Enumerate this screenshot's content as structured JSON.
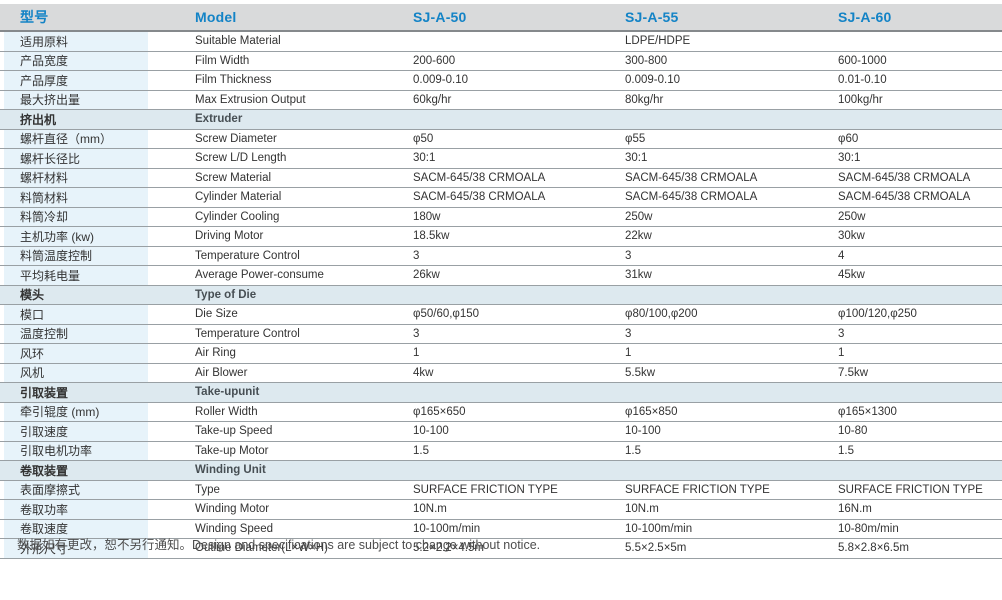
{
  "colors": {
    "header_bg": "#d9dadb",
    "header_text": "#1383c6",
    "first_col_bg": "#e7f3fa",
    "section_row_bg": "#dde9ef",
    "grid_line": "#99a0a4"
  },
  "table": {
    "headers": {
      "cn": "型号",
      "model": "Model",
      "col1": "SJ-A-50",
      "col2": "SJ-A-55",
      "col3": "SJ-A-60"
    },
    "rows": [
      {
        "type": "data",
        "cn": "适用原料",
        "en": "Suitable Material",
        "v1": "",
        "v2": "LDPE/HDPE",
        "v3": ""
      },
      {
        "type": "data",
        "cn": "产品宽度",
        "en": "Film Width",
        "v1": "200-600",
        "v2": "300-800",
        "v3": "600-1000"
      },
      {
        "type": "data",
        "cn": "产品厚度",
        "en": "Film Thickness",
        "v1": "0.009-0.10",
        "v2": "0.009-0.10",
        "v3": "0.01-0.10"
      },
      {
        "type": "data",
        "cn": "最大挤出量",
        "en": "Max Extrusion Output",
        "v1": "60kg/hr",
        "v2": "80kg/hr",
        "v3": "100kg/hr"
      },
      {
        "type": "section",
        "cn": "挤出机",
        "en": "Extruder"
      },
      {
        "type": "data",
        "cn": "螺杆直径（mm）",
        "en": "Screw Diameter",
        "v1": "φ50",
        "v2": "φ55",
        "v3": "φ60"
      },
      {
        "type": "data",
        "cn": "螺杆长径比",
        "en": "Screw L/D Length",
        "v1": "30:1",
        "v2": "30:1",
        "v3": "30:1"
      },
      {
        "type": "data",
        "cn": "螺杆材料",
        "en": "Screw Material",
        "v1": "SACM-645/38 CRMOALA",
        "v2": "SACM-645/38 CRMOALA",
        "v3": "SACM-645/38 CRMOALA"
      },
      {
        "type": "data",
        "cn": "料筒材料",
        "en": "Cylinder Material",
        "v1": "SACM-645/38 CRMOALA",
        "v2": "SACM-645/38 CRMOALA",
        "v3": "SACM-645/38 CRMOALA"
      },
      {
        "type": "data",
        "cn": "料筒冷却",
        "en": "Cylinder Cooling",
        "v1": "180w",
        "v2": "250w",
        "v3": "250w"
      },
      {
        "type": "data",
        "cn": "主机功率 (kw)",
        "en": "Driving Motor",
        "v1": "18.5kw",
        "v2": "22kw",
        "v3": "30kw"
      },
      {
        "type": "data",
        "cn": "料筒温度控制",
        "en": "Temperature Control",
        "v1": "3",
        "v2": "3",
        "v3": "4"
      },
      {
        "type": "data",
        "cn": "平均耗电量",
        "en": "Average Power-consume",
        "v1": "26kw",
        "v2": "31kw",
        "v3": "45kw"
      },
      {
        "type": "section",
        "cn": "模头",
        "en": "Type of Die"
      },
      {
        "type": "data",
        "cn": "模口",
        "en": "Die Size",
        "v1": "φ50/60,φ150",
        "v2": "φ80/100,φ200",
        "v3": "φ100/120,φ250"
      },
      {
        "type": "data",
        "cn": "温度控制",
        "en": "Temperature Control",
        "v1": "3",
        "v2": "3",
        "v3": "3"
      },
      {
        "type": "data",
        "cn": "风环",
        "en": "Air Ring",
        "v1": "1",
        "v2": "1",
        "v3": "1"
      },
      {
        "type": "data",
        "cn": "风机",
        "en": "Air Blower",
        "v1": "4kw",
        "v2": "5.5kw",
        "v3": "7.5kw"
      },
      {
        "type": "section",
        "cn": "引取装置",
        "en": "Take-upunit"
      },
      {
        "type": "data",
        "cn": "牵引辊度 (mm)",
        "en": "Roller Width",
        "v1": "φ165×650",
        "v2": "φ165×850",
        "v3": "φ165×1300"
      },
      {
        "type": "data",
        "cn": "引取速度",
        "en": "Take-up Speed",
        "v1": "10-100",
        "v2": "10-100",
        "v3": "10-80"
      },
      {
        "type": "data",
        "cn": "引取电机功率",
        "en": "Take-up Motor",
        "v1": "1.5",
        "v2": "1.5",
        "v3": "1.5"
      },
      {
        "type": "section",
        "cn": "卷取装置",
        "en": "Winding Unit"
      },
      {
        "type": "data",
        "cn": "表面摩擦式",
        "en": "Type",
        "v1": "SURFACE FRICTION TYPE",
        "v2": "SURFACE FRICTION TYPE",
        "v3": "SURFACE FRICTION TYPE"
      },
      {
        "type": "data",
        "cn": "卷取功率",
        "en": "Winding Motor",
        "v1": "10N.m",
        "v2": "10N.m",
        "v3": "16N.m"
      },
      {
        "type": "data",
        "cn": "卷取速度",
        "en": "Winding Speed",
        "v1": "10-100m/min",
        "v2": "10-100m/min",
        "v3": "10-80m/min"
      },
      {
        "type": "data",
        "cn": "外形尺寸",
        "en": "Outline Diameter(L×W×H)",
        "v1": "5.2×2.2×4.5m",
        "v2": "5.5×2.5×5m",
        "v3": "5.8×2.8×6.5m"
      }
    ]
  },
  "footer": {
    "note": "数据如有更改，恕不另行通知。Design and specifications are subject to change without notice."
  }
}
